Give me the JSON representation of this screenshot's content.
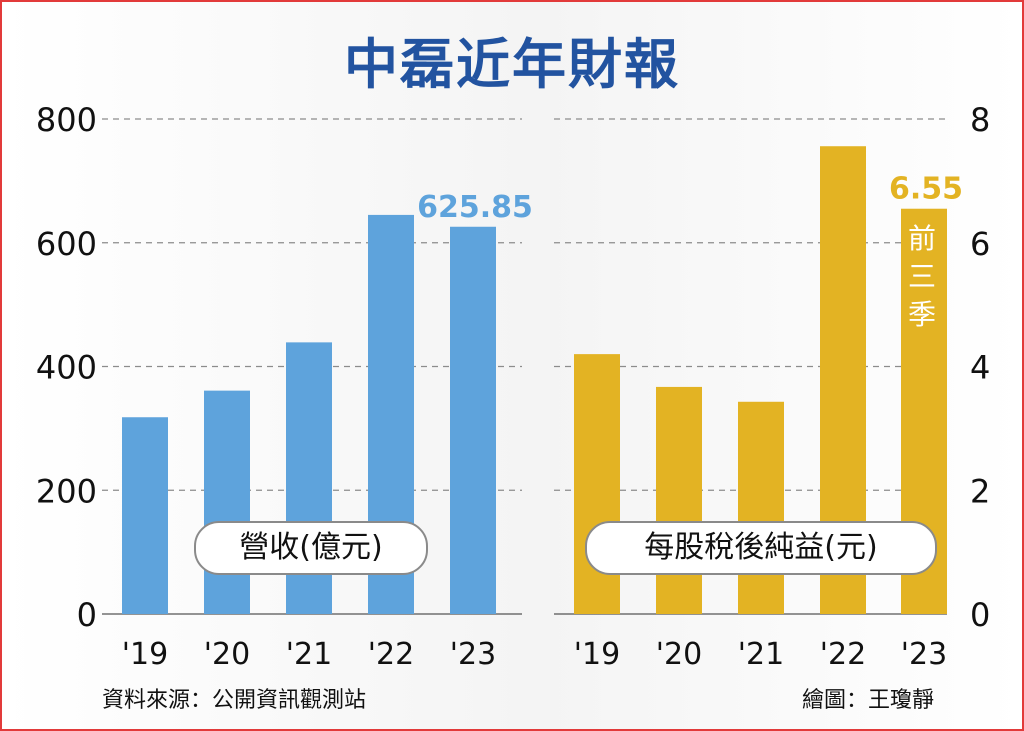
{
  "title": "中磊近年財報",
  "source": "資料來源：公開資訊觀測站",
  "credit": "繪圖：王瓊靜",
  "colors": {
    "title": "#2253a0",
    "revenue_bar": "#5ea3dc",
    "eps_bar": "#e3b323",
    "frame": "#e23a3a"
  },
  "chart_data": [
    {
      "type": "bar",
      "series_label": "營收(億元)",
      "categories": [
        "'19",
        "'20",
        "'21",
        "'22",
        "'23"
      ],
      "values": [
        318,
        361,
        439,
        645,
        625.85
      ],
      "ylim": [
        0,
        800
      ],
      "yticks": [
        "0",
        "200",
        "400",
        "600",
        "800"
      ],
      "grid": true,
      "data_labels": {
        "4": "625.85"
      }
    },
    {
      "type": "bar",
      "series_label": "每股稅後純益(元)",
      "categories": [
        "'19",
        "'20",
        "'21",
        "'22",
        "'23"
      ],
      "values": [
        4.2,
        3.67,
        3.43,
        7.56,
        6.55
      ],
      "ylim": [
        0,
        8
      ],
      "yticks": [
        "0",
        "2",
        "4",
        "6",
        "8"
      ],
      "grid": true,
      "data_labels": {
        "4": "6.55"
      },
      "bar_note": "前三季"
    }
  ]
}
